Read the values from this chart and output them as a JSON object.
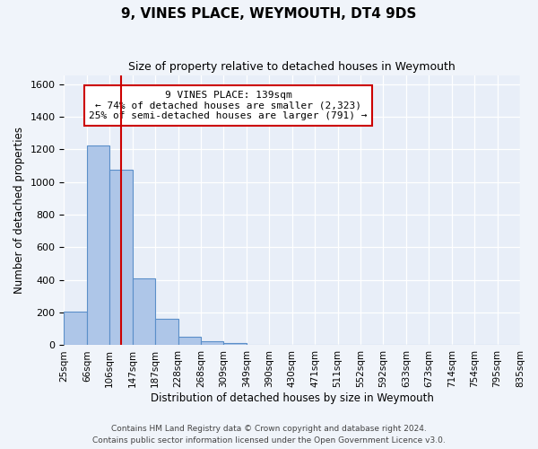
{
  "title": "9, VINES PLACE, WEYMOUTH, DT4 9DS",
  "subtitle": "Size of property relative to detached houses in Weymouth",
  "xlabel": "Distribution of detached houses by size in Weymouth",
  "ylabel": "Number of detached properties",
  "bin_edges": [
    "25sqm",
    "66sqm",
    "106sqm",
    "147sqm",
    "187sqm",
    "228sqm",
    "268sqm",
    "309sqm",
    "349sqm",
    "390sqm",
    "430sqm",
    "471sqm",
    "511sqm",
    "552sqm",
    "592sqm",
    "633sqm",
    "673sqm",
    "714sqm",
    "754sqm",
    "795sqm",
    "835sqm"
  ],
  "bar_heights": [
    205,
    1225,
    1075,
    410,
    160,
    50,
    25,
    15,
    0,
    0,
    0,
    0,
    0,
    0,
    0,
    0,
    0,
    0,
    0,
    0
  ],
  "bar_color": "#aec6e8",
  "bar_edge_color": "#5b8fc9",
  "vline_position": 2.5,
  "vline_color": "#cc0000",
  "annotation_text_lines": [
    "9 VINES PLACE: 139sqm",
    "← 74% of detached houses are smaller (2,323)",
    "25% of semi-detached houses are larger (791) →"
  ],
  "annotation_box_color": "#cc0000",
  "ylim": [
    0,
    1650
  ],
  "yticks": [
    0,
    200,
    400,
    600,
    800,
    1000,
    1200,
    1400,
    1600
  ],
  "footer_line1": "Contains HM Land Registry data © Crown copyright and database right 2024.",
  "footer_line2": "Contains public sector information licensed under the Open Government Licence v3.0.",
  "bg_color": "#f0f4fa",
  "plot_bg_color": "#e8eef8"
}
